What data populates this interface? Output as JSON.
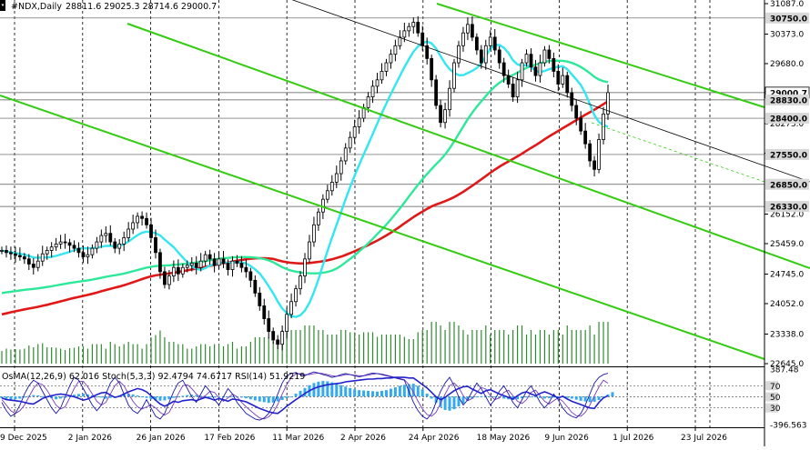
{
  "header": {
    "symbol": "#NDX,Daily",
    "ohlc": "28811.6 29025.3 28714.6 29000.7"
  },
  "indicator_header": "OsMA(12,26,9) 62.016  Stoch(5,3,3) 92.4794 74.6717  RSI(14) 51.9219",
  "colors": {
    "background": "#ffffff",
    "candle": "#000000",
    "volume": "#2e8b2e",
    "ma_fast": "#33e6f0",
    "ma_mid": "#2ee89a",
    "ma_slow": "#e01818",
    "channel": "#33cc11",
    "osma": "#33aaee",
    "stoch_main": "#1a1aaa",
    "stoch_signal": "#7a3ab8",
    "rsi": "#2222cc",
    "label_bg": "#d8d8d8"
  },
  "chart_data": {
    "type": "candlestick",
    "title": "#NDX,Daily",
    "y_range": [
      22645,
      31087
    ],
    "y_ticks": [
      "31087.0",
      "30373.0",
      "29680.0",
      "28273.0",
      "27580.0",
      "26152.0",
      "25459.0",
      "24745.0",
      "24052.0",
      "23338.0",
      "22645.0"
    ],
    "price_labels": [
      {
        "label": "30750.0",
        "value": 30750,
        "current": false
      },
      {
        "label": "29000.7",
        "value": 29000.7,
        "current": true
      },
      {
        "label": "28830.0",
        "value": 28830,
        "current": false
      },
      {
        "label": "28400.0",
        "value": 28400,
        "current": false
      },
      {
        "label": "27550.0",
        "value": 27550,
        "current": false
      },
      {
        "label": "26850.0",
        "value": 26850,
        "current": false
      },
      {
        "label": "26330.0",
        "value": 26330,
        "current": false
      }
    ],
    "x_labels": [
      "9 Dec 2025",
      "2 Jan 2026",
      "26 Jan 2026",
      "17 Feb 2026",
      "11 Mar 2026",
      "2 Apr 2026",
      "24 Apr 2026",
      "18 May 2026",
      "9 Jun 2026",
      "1 Jul 2026",
      "23 Jul 2026"
    ],
    "sub_y_ticks": [
      "387.48",
      "70",
      "50",
      "30",
      "-396.563"
    ],
    "sub_range": [
      -396.563,
      387.48
    ],
    "sub_level_values": [
      70,
      50,
      30
    ],
    "closes": [
      25300,
      25250,
      25220,
      25180,
      25150,
      25100,
      24980,
      24900,
      25050,
      25220,
      25300,
      25380,
      25450,
      25500,
      25480,
      25420,
      25350,
      25250,
      25150,
      25200,
      25350,
      25500,
      25650,
      25700,
      25500,
      25350,
      25450,
      25600,
      25800,
      25950,
      26100,
      26050,
      25900,
      25600,
      25250,
      24800,
      24500,
      24700,
      24900,
      24750,
      24900,
      24950,
      25000,
      24900,
      25050,
      25200,
      25100,
      24950,
      25100,
      25000,
      24850,
      25050,
      25000,
      24900,
      24800,
      24600,
      24300,
      24000,
      23700,
      23400,
      23200,
      23100,
      23400,
      23800,
      24100,
      24400,
      24700,
      25100,
      25500,
      25900,
      26200,
      26500,
      26700,
      26900,
      27100,
      27400,
      27700,
      27950,
      28200,
      28400,
      28650,
      28900,
      29150,
      29300,
      29500,
      29700,
      29900,
      30100,
      30300,
      30450,
      30550,
      30650,
      30400,
      30100,
      29800,
      29300,
      28700,
      28300,
      28600,
      29100,
      29700,
      30100,
      30400,
      30600,
      30300,
      30000,
      29700,
      30100,
      30300,
      30000,
      29700,
      29400,
      29200,
      28900,
      29300,
      29700,
      29900,
      29600,
      29400,
      29700,
      30000,
      29800,
      29500,
      29200,
      29400,
      29000,
      28700,
      28400,
      28100,
      27800,
      27400,
      27200,
      27900,
      28500,
      29000.7
    ],
    "osma": [
      -25,
      -35,
      -45,
      -40,
      -30,
      -15,
      10,
      20,
      15,
      5,
      -10,
      -25,
      -40,
      -30,
      -15,
      5,
      25,
      35,
      40,
      30,
      15,
      0,
      -15,
      -30,
      -20,
      -5,
      15,
      30,
      40,
      30,
      15,
      0,
      -20,
      -40,
      -55,
      -60,
      -55,
      -40,
      -20,
      -5,
      10,
      20,
      25,
      20,
      10,
      0,
      -10,
      -15,
      -10,
      -5,
      0,
      5,
      -5,
      -15,
      -25,
      -40,
      -55,
      -70,
      -80,
      -90,
      -85,
      -70,
      -50,
      -25,
      0,
      40,
      80,
      120,
      160,
      190,
      210,
      220,
      215,
      200,
      180,
      160,
      140,
      120,
      100,
      90,
      85,
      80,
      75,
      70,
      80,
      90,
      110,
      130,
      150,
      165,
      175,
      180,
      150,
      100,
      40,
      -30,
      -90,
      -150,
      -190,
      -200,
      -180,
      -140,
      -100,
      -60,
      -30,
      -10,
      5,
      10,
      0,
      -10,
      -20,
      -30,
      -40,
      -50,
      -40,
      -25,
      -10,
      0,
      -10,
      -20,
      -30,
      -25,
      -15,
      -5,
      -10,
      -20,
      -30,
      -45,
      -60,
      -70,
      -80,
      -75,
      -50,
      -10,
      30,
      62.016
    ],
    "stoch_main": [
      40,
      25,
      15,
      20,
      35,
      55,
      70,
      80,
      75,
      60,
      45,
      30,
      20,
      30,
      50,
      70,
      85,
      80,
      65,
      50,
      35,
      25,
      35,
      55,
      75,
      85,
      75,
      55,
      35,
      25,
      20,
      30,
      45,
      30,
      15,
      10,
      20,
      40,
      60,
      75,
      80,
      65,
      50,
      40,
      55,
      70,
      60,
      45,
      35,
      50,
      65,
      55,
      40,
      30,
      20,
      15,
      10,
      8,
      12,
      20,
      35,
      55,
      75,
      88,
      92,
      94,
      90,
      88,
      92,
      95,
      93,
      90,
      88,
      85,
      87,
      90,
      92,
      90,
      88,
      86,
      88,
      91,
      93,
      92,
      90,
      88,
      86,
      84,
      82,
      80,
      60,
      40,
      25,
      15,
      10,
      20,
      40,
      60,
      75,
      85,
      70,
      50,
      35,
      45,
      60,
      75,
      65,
      50,
      35,
      45,
      60,
      70,
      55,
      40,
      30,
      45,
      60,
      70,
      55,
      40,
      30,
      40,
      55,
      45,
      30,
      20,
      15,
      12,
      20,
      35,
      55,
      75,
      85,
      90,
      92.4794
    ],
    "stoch_signal": [
      45,
      35,
      25,
      20,
      25,
      35,
      50,
      65,
      75,
      72,
      62,
      48,
      35,
      28,
      32,
      48,
      65,
      78,
      78,
      68,
      55,
      42,
      35,
      40,
      55,
      70,
      78,
      70,
      55,
      42,
      32,
      28,
      32,
      35,
      30,
      22,
      17,
      22,
      38,
      55,
      70,
      72,
      65,
      55,
      48,
      52,
      60,
      58,
      48,
      42,
      48,
      55,
      50,
      40,
      32,
      25,
      18,
      12,
      10,
      14,
      22,
      36,
      55,
      72,
      85,
      91,
      92,
      90,
      90,
      92,
      93,
      92,
      90,
      88,
      87,
      88,
      90,
      90,
      89,
      88,
      88,
      89,
      91,
      92,
      91,
      89,
      87,
      85,
      83,
      81,
      72,
      58,
      42,
      28,
      18,
      15,
      22,
      38,
      55,
      70,
      75,
      67,
      52,
      43,
      47,
      58,
      67,
      64,
      52,
      45,
      48,
      58,
      62,
      52,
      42,
      38,
      45,
      58,
      62,
      52,
      42,
      37,
      43,
      48,
      42,
      32,
      22,
      16,
      15,
      22,
      35,
      52,
      68,
      80,
      74.6717
    ],
    "rsi": [
      48,
      45,
      44,
      43,
      42,
      40,
      38,
      37,
      42,
      47,
      50,
      52,
      54,
      55,
      54,
      52,
      50,
      47,
      44,
      46,
      50,
      54,
      57,
      58,
      53,
      49,
      51,
      55,
      59,
      62,
      65,
      63,
      59,
      52,
      44,
      37,
      33,
      37,
      42,
      40,
      43,
      44,
      45,
      43,
      46,
      49,
      47,
      44,
      47,
      45,
      42,
      46,
      45,
      43,
      41,
      37,
      33,
      29,
      26,
      23,
      21,
      20,
      26,
      33,
      39,
      45,
      50,
      56,
      61,
      65,
      68,
      70,
      72,
      73,
      74,
      75,
      77,
      78,
      79,
      80,
      81,
      82,
      82,
      83,
      83,
      84,
      84,
      85,
      85,
      85,
      84,
      84,
      78,
      72,
      66,
      58,
      50,
      45,
      49,
      55,
      61,
      65,
      68,
      69,
      64,
      60,
      56,
      61,
      63,
      59,
      55,
      52,
      49,
      46,
      52,
      57,
      59,
      55,
      52,
      56,
      59,
      56,
      52,
      48,
      51,
      46,
      42,
      39,
      36,
      33,
      30,
      29,
      40,
      48,
      51.9219
    ]
  }
}
